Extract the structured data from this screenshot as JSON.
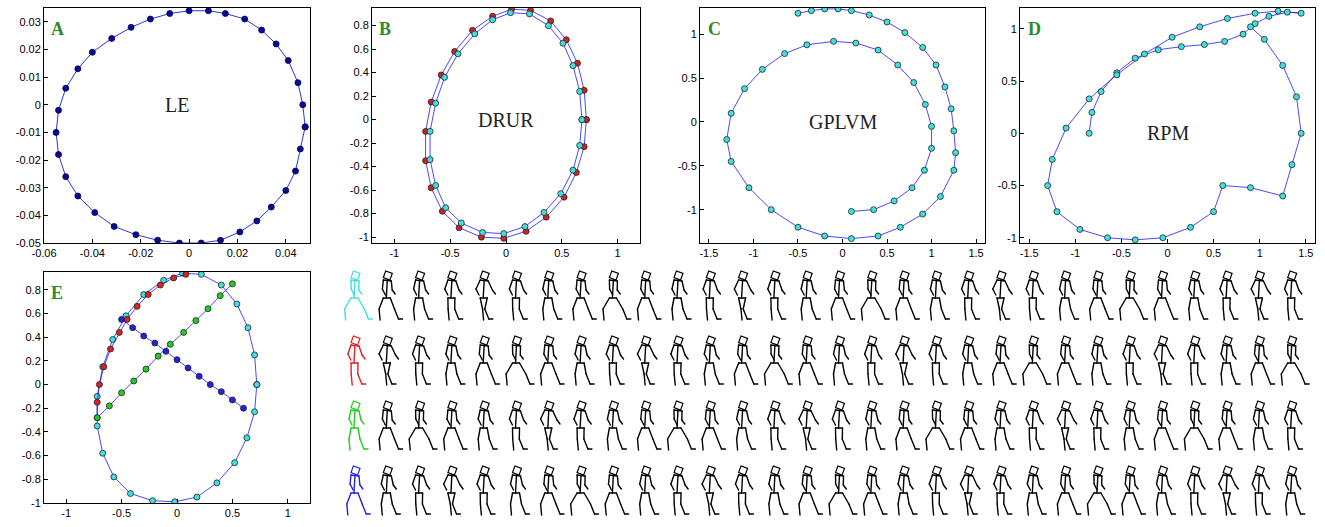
{
  "chart_data": [
    {
      "type": "scatter",
      "title": "A",
      "annotations": [
        {
          "text": "LE",
          "x": -0.005,
          "y": 0
        }
      ],
      "xlim": [
        -0.06,
        0.05
      ],
      "xticks": [
        -0.06,
        -0.04,
        -0.02,
        0,
        0.02,
        0.04
      ],
      "ylim": [
        -0.05,
        0.035
      ],
      "yticks": [
        -0.05,
        -0.04,
        -0.03,
        -0.02,
        -0.01,
        0,
        0.01,
        0.02,
        0.03
      ],
      "grid": false,
      "series": [
        {
          "color": "#0a0a8c",
          "marker": "circle",
          "line_style": "solid",
          "x": [
            0.048,
            0.047,
            0.045,
            0.041,
            0.036,
            0.03,
            0.023,
            0.015,
            0.008,
            0.0,
            -0.008,
            -0.016,
            -0.024,
            -0.032,
            -0.04,
            -0.046,
            -0.051,
            -0.054,
            -0.055,
            -0.054,
            -0.051,
            -0.046,
            -0.039,
            -0.031,
            -0.022,
            -0.013,
            -0.004,
            0.005,
            0.013,
            0.021,
            0.028,
            0.034,
            0.04,
            0.044,
            0.046,
            0.048
          ],
          "y": [
            -0.008,
            0.0,
            0.008,
            0.016,
            0.022,
            0.027,
            0.031,
            0.033,
            0.034,
            0.034,
            0.033,
            0.031,
            0.028,
            0.024,
            0.019,
            0.013,
            0.006,
            -0.002,
            -0.01,
            -0.018,
            -0.026,
            -0.033,
            -0.039,
            -0.044,
            -0.047,
            -0.049,
            -0.05,
            -0.05,
            -0.049,
            -0.046,
            -0.042,
            -0.037,
            -0.031,
            -0.024,
            -0.016,
            -0.008
          ]
        }
      ]
    },
    {
      "type": "scatter",
      "title": "B",
      "annotations": [
        {
          "text": "DRUR",
          "x": 0,
          "y": 0
        }
      ],
      "xlim": [
        -1.2,
        1.2
      ],
      "xticks": [
        -1,
        -0.5,
        0,
        0.5,
        1
      ],
      "ylim": [
        -1.05,
        0.95
      ],
      "yticks": [
        -1,
        -0.8,
        -0.6,
        -0.4,
        -0.2,
        0,
        0.2,
        0.4,
        0.6,
        0.8
      ],
      "grid": false,
      "series": [
        {
          "color": "#cc2222",
          "marker": "circle",
          "line_style": "solid",
          "x": [
            0.72,
            0.7,
            0.64,
            0.54,
            0.4,
            0.22,
            0.05,
            -0.12,
            -0.3,
            -0.46,
            -0.58,
            -0.67,
            -0.72,
            -0.72,
            -0.67,
            -0.57,
            -0.42,
            -0.22,
            -0.02,
            0.18,
            0.36,
            0.52,
            0.63,
            0.7,
            0.72
          ],
          "y": [
            0.0,
            0.25,
            0.48,
            0.68,
            0.84,
            0.93,
            0.94,
            0.88,
            0.76,
            0.58,
            0.38,
            0.15,
            -0.1,
            -0.35,
            -0.58,
            -0.78,
            -0.92,
            -1.0,
            -1.01,
            -0.95,
            -0.83,
            -0.66,
            -0.45,
            -0.23,
            0.0
          ]
        },
        {
          "color": "#40e0e0",
          "marker": "circle",
          "line_style": "solid",
          "x": [
            0.68,
            0.66,
            0.6,
            0.51,
            0.38,
            0.21,
            0.04,
            -0.12,
            -0.28,
            -0.43,
            -0.55,
            -0.63,
            -0.68,
            -0.68,
            -0.63,
            -0.54,
            -0.4,
            -0.21,
            -0.02,
            0.17,
            0.34,
            0.49,
            0.6,
            0.66,
            0.68
          ],
          "y": [
            0.0,
            0.24,
            0.46,
            0.65,
            0.8,
            0.9,
            0.91,
            0.85,
            0.73,
            0.56,
            0.36,
            0.14,
            -0.1,
            -0.34,
            -0.56,
            -0.75,
            -0.88,
            -0.96,
            -0.97,
            -0.91,
            -0.79,
            -0.63,
            -0.43,
            -0.22,
            0.0
          ]
        }
      ]
    },
    {
      "type": "scatter",
      "title": "C",
      "annotations": [
        {
          "text": "GPLVM",
          "x": 0,
          "y": 0
        }
      ],
      "xlim": [
        -1.6,
        1.6
      ],
      "xticks": [
        -1.5,
        -1,
        -0.5,
        0,
        0.5,
        1,
        1.5
      ],
      "ylim": [
        -1.38,
        1.3
      ],
      "yticks": [
        -1,
        -0.5,
        0,
        0.5,
        1
      ],
      "grid": false,
      "series": [
        {
          "color": "#40e0e0",
          "marker": "circle",
          "line_style": "solid",
          "x": [
            -0.5,
            -0.35,
            -0.2,
            -0.05,
            0.1,
            0.3,
            0.5,
            0.7,
            0.9,
            1.05,
            1.15,
            1.22,
            1.25,
            1.27,
            1.25,
            1.1,
            0.9,
            0.65,
            0.4,
            0.1,
            -0.2,
            -0.5,
            -0.8,
            -1.05,
            -1.25,
            -1.3,
            -1.25,
            -1.1,
            -0.9,
            -0.65,
            -0.4,
            -0.1,
            0.15,
            0.4,
            0.62,
            0.8,
            0.93,
            1.0,
            1.0,
            0.92,
            0.78,
            0.58,
            0.35,
            0.1
          ],
          "y": [
            1.24,
            1.27,
            1.29,
            1.29,
            1.27,
            1.22,
            1.14,
            1.02,
            0.85,
            0.65,
            0.4,
            0.15,
            -0.1,
            -0.35,
            -0.55,
            -0.85,
            -1.05,
            -1.2,
            -1.3,
            -1.33,
            -1.3,
            -1.2,
            -1.0,
            -0.75,
            -0.45,
            -0.2,
            0.1,
            0.38,
            0.6,
            0.78,
            0.88,
            0.92,
            0.9,
            0.82,
            0.65,
            0.45,
            0.2,
            -0.05,
            -0.3,
            -0.55,
            -0.75,
            -0.9,
            -1.0,
            -1.02
          ]
        }
      ]
    },
    {
      "type": "scatter",
      "title": "D",
      "annotations": [
        {
          "text": "RPM",
          "x": 0,
          "y": 0
        }
      ],
      "xlim": [
        -1.6,
        1.6
      ],
      "xticks": [
        -1.5,
        -1,
        -0.5,
        0,
        0.5,
        1,
        1.5
      ],
      "ylim": [
        -1.05,
        1.2
      ],
      "yticks": [
        -1,
        -0.5,
        0,
        0.5,
        1
      ],
      "grid": false,
      "series": [
        {
          "color": "#40e0e0",
          "marker": "circle",
          "line_style": "solid",
          "x": [
            -0.85,
            -0.82,
            -0.72,
            -0.55,
            -0.35,
            -0.1,
            0.15,
            0.4,
            0.62,
            0.82,
            0.95,
            1.1,
            1.3,
            1.45,
            1.2,
            0.95,
            0.65,
            0.35,
            0.05,
            -0.25,
            -0.55,
            -0.85,
            -1.1,
            -1.25,
            -1.3,
            -1.2,
            -0.95,
            -0.65,
            -0.35,
            -0.05,
            0.25,
            0.5,
            0.6,
            0.9,
            1.25,
            1.35,
            1.45,
            1.4,
            1.25,
            1.05,
            0.9
          ],
          "y": [
            0.0,
            0.2,
            0.4,
            0.58,
            0.72,
            0.8,
            0.83,
            0.85,
            0.88,
            0.95,
            1.05,
            1.12,
            1.16,
            1.15,
            1.17,
            1.15,
            1.1,
            1.02,
            0.92,
            0.76,
            0.56,
            0.33,
            0.05,
            -0.25,
            -0.5,
            -0.75,
            -0.92,
            -1.0,
            -1.02,
            -1.0,
            -0.9,
            -0.75,
            -0.5,
            -0.52,
            -0.6,
            -0.3,
            0.0,
            0.35,
            0.65,
            0.9,
            1.02
          ]
        }
      ]
    },
    {
      "type": "scatter",
      "title": "E",
      "xlim": [
        -1.2,
        1.2
      ],
      "xticks": [
        -1,
        -0.5,
        0,
        0.5,
        1
      ],
      "ylim": [
        -1.0,
        0.95
      ],
      "yticks": [
        -1,
        -0.8,
        -0.6,
        -0.4,
        -0.2,
        0,
        0.2,
        0.4,
        0.6,
        0.8
      ],
      "grid": false,
      "series": [
        {
          "color": "#40e0e0",
          "marker": "circle",
          "line_style": "solid",
          "x": [
            0.72,
            0.7,
            0.64,
            0.54,
            0.4,
            0.22,
            0.05,
            -0.12,
            -0.3,
            -0.46,
            -0.58,
            -0.67,
            -0.72,
            -0.72,
            -0.67,
            -0.57,
            -0.42,
            -0.22,
            -0.02,
            0.18,
            0.36,
            0.52,
            0.63,
            0.7,
            0.72
          ],
          "y": [
            0.0,
            0.25,
            0.48,
            0.68,
            0.84,
            0.93,
            0.94,
            0.88,
            0.76,
            0.58,
            0.38,
            0.15,
            -0.1,
            -0.35,
            -0.58,
            -0.78,
            -0.92,
            -0.98,
            -0.99,
            -0.95,
            -0.83,
            -0.66,
            -0.45,
            -0.23,
            0.0
          ]
        },
        {
          "color": "#dd2222",
          "marker": "circle",
          "line_style": "solid",
          "x": [
            -0.72,
            -0.72,
            -0.7,
            -0.66,
            -0.6,
            -0.52,
            -0.45,
            -0.36,
            -0.26,
            -0.15,
            -0.03,
            0.08
          ],
          "y": [
            -0.28,
            -0.15,
            0.0,
            0.15,
            0.3,
            0.44,
            0.55,
            0.66,
            0.76,
            0.84,
            0.9,
            0.93
          ]
        },
        {
          "color": "#22cc22",
          "marker": "circle",
          "line_style": "solid",
          "x": [
            -0.72,
            -0.61,
            -0.5,
            -0.39,
            -0.28,
            -0.17,
            -0.06,
            0.06,
            0.17,
            0.28,
            0.39,
            0.5
          ],
          "y": [
            -0.28,
            -0.18,
            -0.07,
            0.03,
            0.13,
            0.24,
            0.34,
            0.44,
            0.54,
            0.64,
            0.75,
            0.85
          ]
        },
        {
          "color": "#2222dd",
          "marker": "circle",
          "line_style": "solid",
          "x": [
            -0.5,
            -0.4,
            -0.3,
            -0.2,
            -0.1,
            0.0,
            0.1,
            0.2,
            0.3,
            0.4,
            0.5,
            0.6
          ],
          "y": [
            0.55,
            0.48,
            0.41,
            0.35,
            0.28,
            0.21,
            0.14,
            0.07,
            0.0,
            -0.06,
            -0.13,
            -0.2
          ]
        }
      ]
    }
  ]
}
